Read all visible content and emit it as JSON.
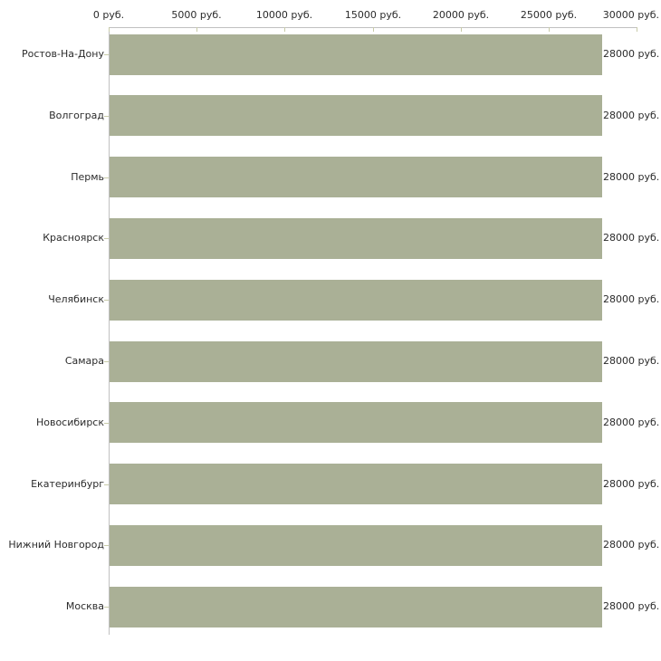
{
  "chart_data": {
    "type": "bar",
    "orientation": "horizontal",
    "title": "",
    "categories": [
      "Ростов-На-Дону",
      "Волгоград",
      "Пермь",
      "Красноярск",
      "Челябинск",
      "Самара",
      "Новосибирск",
      "Екатеринбург",
      "Нижний Новгород",
      "Москва"
    ],
    "values": [
      28000,
      28000,
      28000,
      28000,
      28000,
      28000,
      28000,
      28000,
      28000,
      28000
    ],
    "value_labels": [
      "28000 руб.",
      "28000 руб.",
      "28000 руб.",
      "28000 руб.",
      "28000 руб.",
      "28000 руб.",
      "28000 руб.",
      "28000 руб.",
      "28000 руб.",
      "28000 руб."
    ],
    "unit": "руб.",
    "x_axis": {
      "position": "top",
      "min": 0,
      "max": 30000,
      "tick_values": [
        0,
        5000,
        10000,
        15000,
        20000,
        25000,
        30000
      ],
      "tick_labels": [
        "0 руб.",
        "5000 руб.",
        "10000 руб.",
        "15000 руб.",
        "20000 руб.",
        "25000 руб.",
        "30000 руб."
      ]
    },
    "grid": false,
    "legend": false,
    "colors": {
      "bar": "#aab096",
      "axis_line": "#c0c0c0",
      "tick": "#c8cba8",
      "text": "#2b2b2b",
      "background": "#ffffff"
    }
  }
}
